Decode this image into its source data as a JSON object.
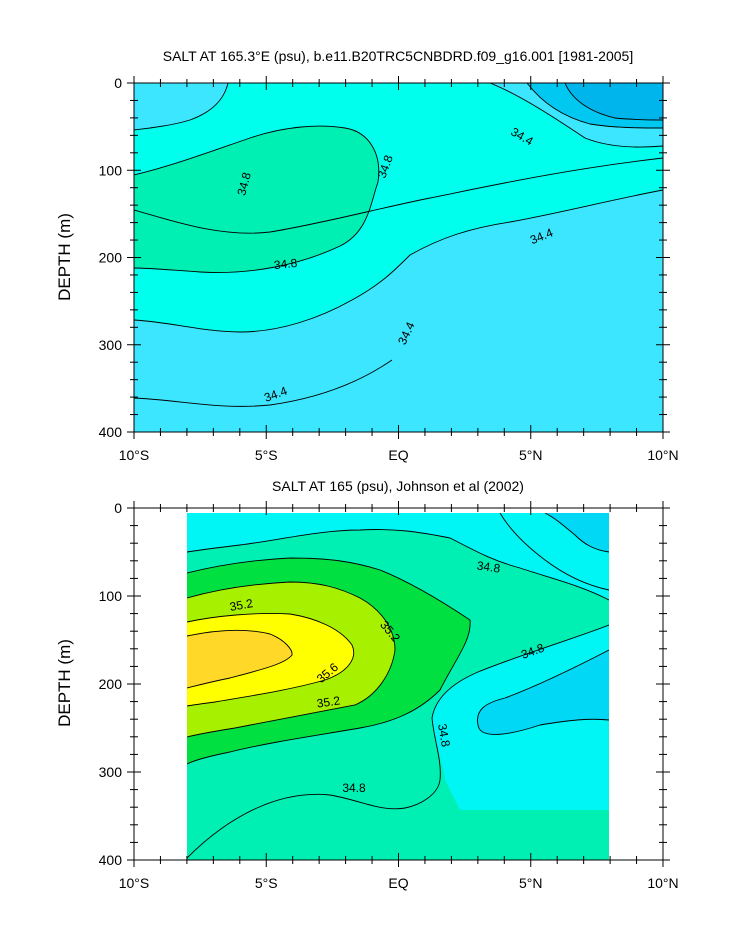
{
  "chart_data": [
    {
      "type": "contour",
      "title": "SALT AT 165.3°E (psu), b.e11.B20TRC5CNBDRD.f09_g16.001 [1981-2005]",
      "ylabel": "DEPTH (m)",
      "xlabel": "",
      "x_ticks": [
        "10°S",
        "5°S",
        "EQ",
        "5°N",
        "10°N"
      ],
      "y_ticks": [
        "0",
        "100",
        "200",
        "300",
        "400"
      ],
      "xlim": [
        -10,
        10
      ],
      "ylim": [
        400,
        0
      ],
      "y_inverted": true,
      "contour_labels": [
        "34.8",
        "34.8",
        "34.8",
        "34.4",
        "34.4",
        "34.4",
        "34.4"
      ],
      "fill_colors": {
        "lt_34.0": "#00c8f0",
        "34.0_34.4": "#3ce6ff",
        "34.4_34.8": "#00ffec",
        "34.8_35.2": "#00f0b4"
      }
    },
    {
      "type": "contour",
      "title": "SALT AT 165 (psu), Johnson et al (2002)",
      "ylabel": "DEPTH (m)",
      "xlabel": "",
      "x_ticks": [
        "10°S",
        "5°S",
        "EQ",
        "5°N",
        "10°N"
      ],
      "y_ticks": [
        "0",
        "100",
        "200",
        "300",
        "400"
      ],
      "xlim": [
        -10,
        10
      ],
      "ylim": [
        400,
        0
      ],
      "y_inverted": true,
      "data_extent_x": [
        -8,
        8
      ],
      "contour_labels": [
        "35.2",
        "35.2",
        "35.6",
        "35.2",
        "34.8",
        "34.8",
        "34.8",
        "34.8"
      ],
      "fill_colors": {
        "34.0_34.4": "#00d8f5",
        "34.4_34.8": "#00f5f5",
        "34.8_35.2": "#00f0b4",
        "35.2_35.4": "#00e040",
        "35.4_35.6": "#a6f000",
        "35.6_35.8": "#ffff00",
        "gt_35.8": "#ffd828"
      }
    }
  ]
}
